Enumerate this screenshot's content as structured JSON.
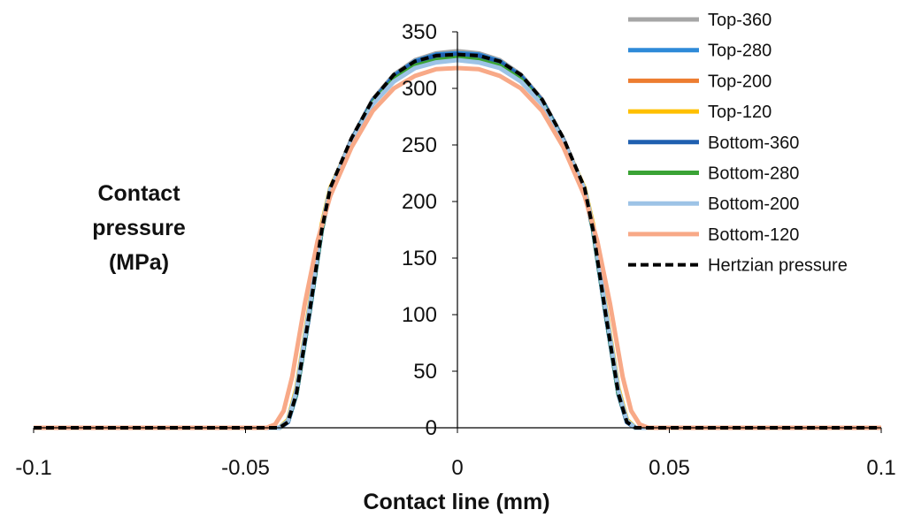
{
  "chart_data": {
    "type": "line",
    "title": "",
    "xlabel": "Contact line (mm)",
    "ylabel_lines": [
      "Contact",
      "pressure",
      "(MPa)"
    ],
    "xlim": [
      -0.1,
      0.1
    ],
    "ylim": [
      0,
      350
    ],
    "x_ticks": [
      -0.1,
      -0.05,
      0,
      0.05,
      0.1
    ],
    "x_tick_labels": [
      "-0.1",
      "-0.05",
      "0",
      "0.05",
      "0.1"
    ],
    "y_ticks": [
      0,
      50,
      100,
      150,
      200,
      250,
      300,
      350
    ],
    "y_tick_labels": [
      "0",
      "50",
      "100",
      "150",
      "200",
      "250",
      "300",
      "350"
    ],
    "grid": false,
    "legend_position": "right",
    "series": [
      {
        "name": "Top-360",
        "color": "#a6a6a6",
        "style": "solid",
        "x": [
          -0.1,
          -0.05,
          -0.042,
          -0.04,
          -0.038,
          -0.035,
          -0.032,
          -0.03,
          -0.025,
          -0.02,
          -0.015,
          -0.01,
          -0.005,
          0,
          0.005,
          0.01,
          0.015,
          0.02,
          0.025,
          0.03,
          0.032,
          0.035,
          0.038,
          0.04,
          0.042,
          0.05,
          0.1
        ],
        "values": [
          0,
          0,
          0,
          5,
          30,
          100,
          175,
          210,
          255,
          290,
          312,
          325,
          331,
          333,
          331,
          325,
          312,
          290,
          255,
          210,
          175,
          100,
          30,
          5,
          0,
          0,
          0
        ]
      },
      {
        "name": "Top-280",
        "color": "#2e8ad8",
        "style": "solid",
        "x": [
          -0.1,
          -0.05,
          -0.042,
          -0.04,
          -0.038,
          -0.035,
          -0.032,
          -0.03,
          -0.025,
          -0.02,
          -0.015,
          -0.01,
          -0.005,
          0,
          0.005,
          0.01,
          0.015,
          0.02,
          0.025,
          0.03,
          0.032,
          0.035,
          0.038,
          0.04,
          0.042,
          0.05,
          0.1
        ],
        "values": [
          0,
          0,
          0,
          5,
          30,
          100,
          175,
          210,
          254,
          289,
          311,
          324,
          330,
          331,
          330,
          324,
          311,
          289,
          254,
          210,
          175,
          100,
          30,
          5,
          0,
          0,
          0
        ]
      },
      {
        "name": "Top-200",
        "color": "#ed7d31",
        "style": "solid",
        "x": [
          -0.1,
          -0.05,
          -0.042,
          -0.04,
          -0.038,
          -0.035,
          -0.032,
          -0.03,
          -0.025,
          -0.02,
          -0.015,
          -0.01,
          -0.005,
          0,
          0.005,
          0.01,
          0.015,
          0.02,
          0.025,
          0.03,
          0.032,
          0.035,
          0.038,
          0.04,
          0.042,
          0.05,
          0.1
        ],
        "values": [
          0,
          0,
          0,
          6,
          32,
          103,
          177,
          211,
          254,
          288,
          309,
          322,
          327,
          329,
          327,
          322,
          309,
          288,
          254,
          211,
          177,
          103,
          32,
          6,
          0,
          0,
          0
        ]
      },
      {
        "name": "Top-120",
        "color": "#ffc000",
        "style": "solid",
        "x": [
          -0.1,
          -0.05,
          -0.042,
          -0.04,
          -0.038,
          -0.035,
          -0.032,
          -0.03,
          -0.025,
          -0.02,
          -0.015,
          -0.01,
          -0.005,
          0,
          0.005,
          0.01,
          0.015,
          0.02,
          0.025,
          0.03,
          0.032,
          0.035,
          0.038,
          0.04,
          0.042,
          0.05,
          0.1
        ],
        "values": [
          0,
          0,
          0,
          7,
          35,
          106,
          180,
          212,
          253,
          287,
          307,
          319,
          324,
          326,
          324,
          319,
          307,
          287,
          253,
          212,
          180,
          106,
          35,
          7,
          0,
          0,
          0
        ]
      },
      {
        "name": "Bottom-360",
        "color": "#2060b0",
        "style": "solid",
        "x": [
          -0.1,
          -0.05,
          -0.042,
          -0.04,
          -0.038,
          -0.035,
          -0.032,
          -0.03,
          -0.025,
          -0.02,
          -0.015,
          -0.01,
          -0.005,
          0,
          0.005,
          0.01,
          0.015,
          0.02,
          0.025,
          0.03,
          0.032,
          0.035,
          0.038,
          0.04,
          0.042,
          0.05,
          0.1
        ],
        "values": [
          0,
          0,
          0,
          5,
          30,
          100,
          175,
          210,
          254,
          289,
          310,
          323,
          329,
          330,
          329,
          323,
          310,
          289,
          254,
          210,
          175,
          100,
          30,
          5,
          0,
          0,
          0
        ]
      },
      {
        "name": "Bottom-280",
        "color": "#3aa335",
        "style": "solid",
        "x": [
          -0.1,
          -0.05,
          -0.042,
          -0.04,
          -0.038,
          -0.035,
          -0.032,
          -0.03,
          -0.025,
          -0.02,
          -0.015,
          -0.01,
          -0.005,
          0,
          0.005,
          0.01,
          0.015,
          0.02,
          0.025,
          0.03,
          0.032,
          0.035,
          0.038,
          0.04,
          0.042,
          0.05,
          0.1
        ],
        "values": [
          0,
          0,
          0,
          6,
          31,
          102,
          176,
          210,
          253,
          287,
          308,
          320,
          325,
          327,
          325,
          320,
          308,
          287,
          253,
          210,
          176,
          102,
          31,
          6,
          0,
          0,
          0
        ]
      },
      {
        "name": "Bottom-200",
        "color": "#9dc3e6",
        "style": "solid",
        "x": [
          -0.1,
          -0.05,
          -0.042,
          -0.04,
          -0.038,
          -0.035,
          -0.032,
          -0.03,
          -0.025,
          -0.02,
          -0.015,
          -0.01,
          -0.005,
          0,
          0.005,
          0.01,
          0.015,
          0.02,
          0.025,
          0.03,
          0.032,
          0.035,
          0.038,
          0.04,
          0.042,
          0.05,
          0.1
        ],
        "values": [
          0,
          0,
          0,
          6,
          33,
          104,
          178,
          211,
          253,
          286,
          306,
          318,
          323,
          325,
          323,
          318,
          306,
          286,
          253,
          211,
          178,
          104,
          33,
          6,
          0,
          0,
          0
        ]
      },
      {
        "name": "Bottom-120",
        "color": "#f8a987",
        "style": "solid",
        "x": [
          -0.1,
          -0.05,
          -0.045,
          -0.043,
          -0.041,
          -0.039,
          -0.036,
          -0.033,
          -0.03,
          -0.025,
          -0.02,
          -0.015,
          -0.01,
          -0.005,
          0,
          0.005,
          0.01,
          0.015,
          0.02,
          0.025,
          0.03,
          0.033,
          0.036,
          0.039,
          0.041,
          0.043,
          0.045,
          0.05,
          0.1
        ],
        "values": [
          0,
          0,
          0,
          3,
          15,
          45,
          110,
          165,
          205,
          248,
          280,
          300,
          311,
          317,
          318,
          317,
          311,
          300,
          280,
          248,
          205,
          165,
          110,
          45,
          15,
          3,
          0,
          0,
          0
        ]
      },
      {
        "name": "Hertzian pressure",
        "color": "#000000",
        "style": "dashed",
        "x": [
          -0.1,
          -0.05,
          -0.042,
          -0.04,
          -0.038,
          -0.035,
          -0.032,
          -0.03,
          -0.025,
          -0.02,
          -0.015,
          -0.01,
          -0.005,
          0,
          0.005,
          0.01,
          0.015,
          0.02,
          0.025,
          0.03,
          0.032,
          0.035,
          0.038,
          0.04,
          0.042,
          0.05,
          0.1
        ],
        "values": [
          0,
          0,
          0,
          5,
          30,
          100,
          175,
          212,
          256,
          290,
          312,
          324,
          329,
          330,
          329,
          324,
          312,
          290,
          256,
          212,
          175,
          100,
          30,
          5,
          0,
          0,
          0
        ]
      }
    ]
  }
}
